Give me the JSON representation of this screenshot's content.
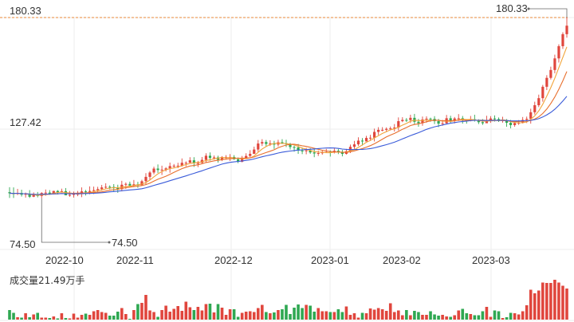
{
  "chart_data": {
    "type": "candlestick",
    "y_labels": [
      "180.33",
      "127.42",
      "74.50"
    ],
    "y_range": [
      74.5,
      180.33
    ],
    "max_marker": "180.33",
    "min_marker": "74.50",
    "x_ticks": [
      "2022-10",
      "2022-11",
      "2022-12",
      "2023-01",
      "2023-02",
      "2023-03"
    ],
    "volume_label": "成交量21.49万手",
    "colors": {
      "up": "#e0463d",
      "down": "#2fa852",
      "ma5": "#f2a43a",
      "ma10": "#e86f2d",
      "ma20": "#3a5bd9",
      "ref_line": "#e8893a",
      "grid": "#eeeeee"
    },
    "candles": [
      [
        96.0,
        95.5,
        98.4,
        93.2
      ],
      [
        95.5,
        95.3,
        98.3,
        93.2
      ],
      [
        95.3,
        95.6,
        97.6,
        94.6
      ],
      [
        95.6,
        94.8,
        97.2,
        93.9
      ],
      [
        94.8,
        95.2,
        95.8,
        93.4
      ],
      [
        95.2,
        93.8,
        97.0,
        93.2
      ],
      [
        93.8,
        94.7,
        95.9,
        93.6
      ],
      [
        94.7,
        94.2,
        96.1,
        93.5
      ],
      [
        94.2,
        95.6,
        96.0,
        93.1
      ],
      [
        95.6,
        95.8,
        97.3,
        94.3
      ],
      [
        95.8,
        95.3,
        97.0,
        94.7
      ],
      [
        95.3,
        96.6,
        96.7,
        94.9
      ],
      [
        96.6,
        96.0,
        97.0,
        94.9
      ],
      [
        96.0,
        96.5,
        97.7,
        95.8
      ],
      [
        96.5,
        94.5,
        98.0,
        94.5
      ],
      [
        94.5,
        94.7,
        96.6,
        93.8
      ],
      [
        94.7,
        95.2,
        96.3,
        93.4
      ],
      [
        95.2,
        95.2,
        96.6,
        94.1
      ],
      [
        95.2,
        96.4,
        98.3,
        93.6
      ],
      [
        96.4,
        96.1,
        97.1,
        94.4
      ],
      [
        96.1,
        96.6,
        98.8,
        95.0
      ],
      [
        96.6,
        97.0,
        98.7,
        95.1
      ],
      [
        97.0,
        97.5,
        98.6,
        95.8
      ],
      [
        97.5,
        98.3,
        99.5,
        96.7
      ],
      [
        98.3,
        98.6,
        100.3,
        97.7
      ],
      [
        98.6,
        98.5,
        99.3,
        97.4
      ],
      [
        98.5,
        98.0,
        99.9,
        96.2
      ],
      [
        98.0,
        97.5,
        99.6,
        95.7
      ],
      [
        97.5,
        99.6,
        101.5,
        96.4
      ],
      [
        99.6,
        100.0,
        100.7,
        97.6
      ],
      [
        100.0,
        99.2,
        101.1,
        98.8
      ],
      [
        99.2,
        99.8,
        101.9,
        98.5
      ],
      [
        99.8,
        99.4,
        101.0,
        98.1
      ],
      [
        99.4,
        101.3,
        102.0,
        99.2
      ],
      [
        101.3,
        103.4,
        105.2,
        99.6
      ],
      [
        103.4,
        105.5,
        106.2,
        102.0
      ],
      [
        105.5,
        107.4,
        108.3,
        104.6
      ],
      [
        107.4,
        106.7,
        109.4,
        105.3
      ],
      [
        106.7,
        106.9,
        108.8,
        104.3
      ],
      [
        106.9,
        107.5,
        108.1,
        106.0
      ],
      [
        107.5,
        108.6,
        110.3,
        105.4
      ],
      [
        108.6,
        108.8,
        109.6,
        107.8
      ],
      [
        108.8,
        108.8,
        110.2,
        107.6
      ],
      [
        108.8,
        110.2,
        112.3,
        108.3
      ],
      [
        110.2,
        110.2,
        110.9,
        108.5
      ],
      [
        110.2,
        111.4,
        112.9,
        110.5
      ],
      [
        111.4,
        110.0,
        112.9,
        108.2
      ],
      [
        110.0,
        110.1,
        111.1,
        108.1
      ],
      [
        110.1,
        111.6,
        113.0,
        110.2
      ],
      [
        111.6,
        113.6,
        114.8,
        110.3
      ],
      [
        113.6,
        112.6,
        115.2,
        111.2
      ],
      [
        112.6,
        112.8,
        113.7,
        111.7
      ],
      [
        112.8,
        111.7,
        113.6,
        110.3
      ],
      [
        111.7,
        113.0,
        113.4,
        111.0
      ],
      [
        113.0,
        113.0,
        113.9,
        111.7
      ],
      [
        113.0,
        113.0,
        114.4,
        111.1
      ],
      [
        113.0,
        111.9,
        113.9,
        111.7
      ],
      [
        111.9,
        110.7,
        112.8,
        110.0
      ],
      [
        110.7,
        112.1,
        113.5,
        110.4
      ],
      [
        112.1,
        113.5,
        114.8,
        112.2
      ],
      [
        113.5,
        114.5,
        116.3,
        113.0
      ],
      [
        114.5,
        116.6,
        118.0,
        114.5
      ],
      [
        116.6,
        119.5,
        121.2,
        115.5
      ],
      [
        119.5,
        120.2,
        121.6,
        118.3
      ],
      [
        120.2,
        119.3,
        121.2,
        118.1
      ],
      [
        119.3,
        119.6,
        121.1,
        118.3
      ],
      [
        119.6,
        119.0,
        120.8,
        116.9
      ],
      [
        119.0,
        120.1,
        121.3,
        118.1
      ],
      [
        120.1,
        119.6,
        121.6,
        119.3
      ],
      [
        119.6,
        119.2,
        121.3,
        117.8
      ],
      [
        119.2,
        117.8,
        119.8,
        116.6
      ],
      [
        117.8,
        117.6,
        118.5,
        115.6
      ],
      [
        117.6,
        116.1,
        119.3,
        114.5
      ],
      [
        116.1,
        115.8,
        117.5,
        114.4
      ],
      [
        115.8,
        116.2,
        117.4,
        114.3
      ],
      [
        116.2,
        115.2,
        117.2,
        114.5
      ],
      [
        115.2,
        114.7,
        116.7,
        112.9
      ],
      [
        114.7,
        114.9,
        116.1,
        113.5
      ],
      [
        114.9,
        115.2,
        116.3,
        114.1
      ],
      [
        115.2,
        115.4,
        116.9,
        115.0
      ],
      [
        115.4,
        115.1,
        116.2,
        113.2
      ],
      [
        115.1,
        116.0,
        117.4,
        114.7
      ],
      [
        116.0,
        115.5,
        116.9,
        114.4
      ],
      [
        115.5,
        114.5,
        116.4,
        113.3
      ],
      [
        114.5,
        115.8,
        116.9,
        114.2
      ],
      [
        115.8,
        117.9,
        119.0,
        114.9
      ],
      [
        117.9,
        119.1,
        120.8,
        116.9
      ],
      [
        119.1,
        120.9,
        122.5,
        118.3
      ],
      [
        120.9,
        120.5,
        122.1,
        118.5
      ],
      [
        120.5,
        122.2,
        123.2,
        120.8
      ],
      [
        122.2,
        122.3,
        123.7,
        120.8
      ],
      [
        122.3,
        125.1,
        126.7,
        120.5
      ],
      [
        125.1,
        126.1,
        127.4,
        123.6
      ],
      [
        126.1,
        126.1,
        127.4,
        125.4
      ],
      [
        126.1,
        126.6,
        127.3,
        125.2
      ],
      [
        126.6,
        126.8,
        127.7,
        125.8
      ],
      [
        126.8,
        127.2,
        128.9,
        125.3
      ],
      [
        127.2,
        130.3,
        132.1,
        125.8
      ],
      [
        130.3,
        130.9,
        132.2,
        129.8
      ],
      [
        130.9,
        130.8,
        131.8,
        129.9
      ],
      [
        130.8,
        131.9,
        133.4,
        129.4
      ],
      [
        131.9,
        130.0,
        133.8,
        128.6
      ],
      [
        130.0,
        129.3,
        131.4,
        127.6
      ],
      [
        129.3,
        131.1,
        132.5,
        128.1
      ],
      [
        131.1,
        131.5,
        132.6,
        129.6
      ],
      [
        131.5,
        131.4,
        132.0,
        130.0
      ],
      [
        131.4,
        130.3,
        132.7,
        128.9
      ],
      [
        130.3,
        129.1,
        131.4,
        127.4
      ],
      [
        129.1,
        129.3,
        130.9,
        128.1
      ],
      [
        129.3,
        131.7,
        133.3,
        129.0
      ],
      [
        131.7,
        130.5,
        132.9,
        129.5
      ],
      [
        130.5,
        131.6,
        132.3,
        129.2
      ],
      [
        131.6,
        131.7,
        133.7,
        130.4
      ],
      [
        131.7,
        130.8,
        132.8,
        129.1
      ],
      [
        130.8,
        130.5,
        131.3,
        129.1
      ],
      [
        130.5,
        131.2,
        132.8,
        130.2
      ],
      [
        131.2,
        130.6,
        133.4,
        130.1
      ],
      [
        130.6,
        129.8,
        131.2,
        128.9
      ],
      [
        129.8,
        129.3,
        131.3,
        128.5
      ],
      [
        129.3,
        130.7,
        132.9,
        129.6
      ],
      [
        130.7,
        131.6,
        132.7,
        129.5
      ],
      [
        131.6,
        131.3,
        133.1,
        130.1
      ],
      [
        131.3,
        130.4,
        132.1,
        129.9
      ],
      [
        130.4,
        130.8,
        132.4,
        129.6
      ],
      [
        130.8,
        129.5,
        131.3,
        127.6
      ],
      [
        129.5,
        128.4,
        130.9,
        126.8
      ],
      [
        128.4,
        129.4,
        130.0,
        127.6
      ],
      [
        129.4,
        129.5,
        130.8,
        128.5
      ],
      [
        129.5,
        130.9,
        132.3,
        129.2
      ],
      [
        130.9,
        131.4,
        132.5,
        129.4
      ],
      [
        131.4,
        134.6,
        136.3,
        129.1
      ],
      [
        134.6,
        138.0,
        139.7,
        133.5
      ],
      [
        138.0,
        141.4,
        143.1,
        137.1
      ],
      [
        141.4,
        146.9,
        147.8,
        139.7
      ],
      [
        146.9,
        151.2,
        152.5,
        145.3
      ],
      [
        151.2,
        155.0,
        156.6,
        150.4
      ],
      [
        155.0,
        160.6,
        162.4,
        153.4
      ],
      [
        160.6,
        166.5,
        167.4,
        158.6
      ],
      [
        166.5,
        172.3,
        173.2,
        165.2
      ],
      [
        172.3,
        176.4,
        180.33,
        170.6
      ]
    ],
    "volumes": [
      0.24,
      0.17,
      0.06,
      0.05,
      0.16,
      0.06,
      0.13,
      0.17,
      0.05,
      0.05,
      0.04,
      0.08,
      0.03,
      0.16,
      0.04,
      0.03,
      0.15,
      0.05,
      0.12,
      0.15,
      0.12,
      0.21,
      0.24,
      0.19,
      0.17,
      0.1,
      0.1,
      0.2,
      0.29,
      0.14,
      0.02,
      0.24,
      0.39,
      0.42,
      0.62,
      0.23,
      0.19,
      0.07,
      0.24,
      0.35,
      0.2,
      0.27,
      0.34,
      0.22,
      0.45,
      0.31,
      0.24,
      0.32,
      0.23,
      0.39,
      0.4,
      0.18,
      0.39,
      0.3,
      0.12,
      0.26,
      0.26,
      0.07,
      0.17,
      0.2,
      0.21,
      0.19,
      0.29,
      0.37,
      0.19,
      0.16,
      0.18,
      0.24,
      0.26,
      0.37,
      0.14,
      0.3,
      0.38,
      0.29,
      0.37,
      0.35,
      0.2,
      0.29,
      0.21,
      0.21,
      0.19,
      0.19,
      0.26,
      0.19,
      0.33,
      0.12,
      0.16,
      0.05,
      0.17,
      0.16,
      0.28,
      0.25,
      0.29,
      0.26,
      0.22,
      0.41,
      0.19,
      0.23,
      0.11,
      0.24,
      0.11,
      0.22,
      0.19,
      0.12,
      0.12,
      0.21,
      0.13,
      0.1,
      0.12,
      0.08,
      0.07,
      0.11,
      0.23,
      0.27,
      0.16,
      0.14,
      0.11,
      0.11,
      0.21,
      0.32,
      0.07,
      0.23,
      0.21,
      0.04,
      0.06,
      0.17,
      0.16,
      0.13,
      0.21,
      0.36,
      0.75,
      0.66,
      0.73,
      0.93,
      0.92,
      0.92,
      1.0,
      0.93,
      0.85,
      0.78
    ]
  }
}
